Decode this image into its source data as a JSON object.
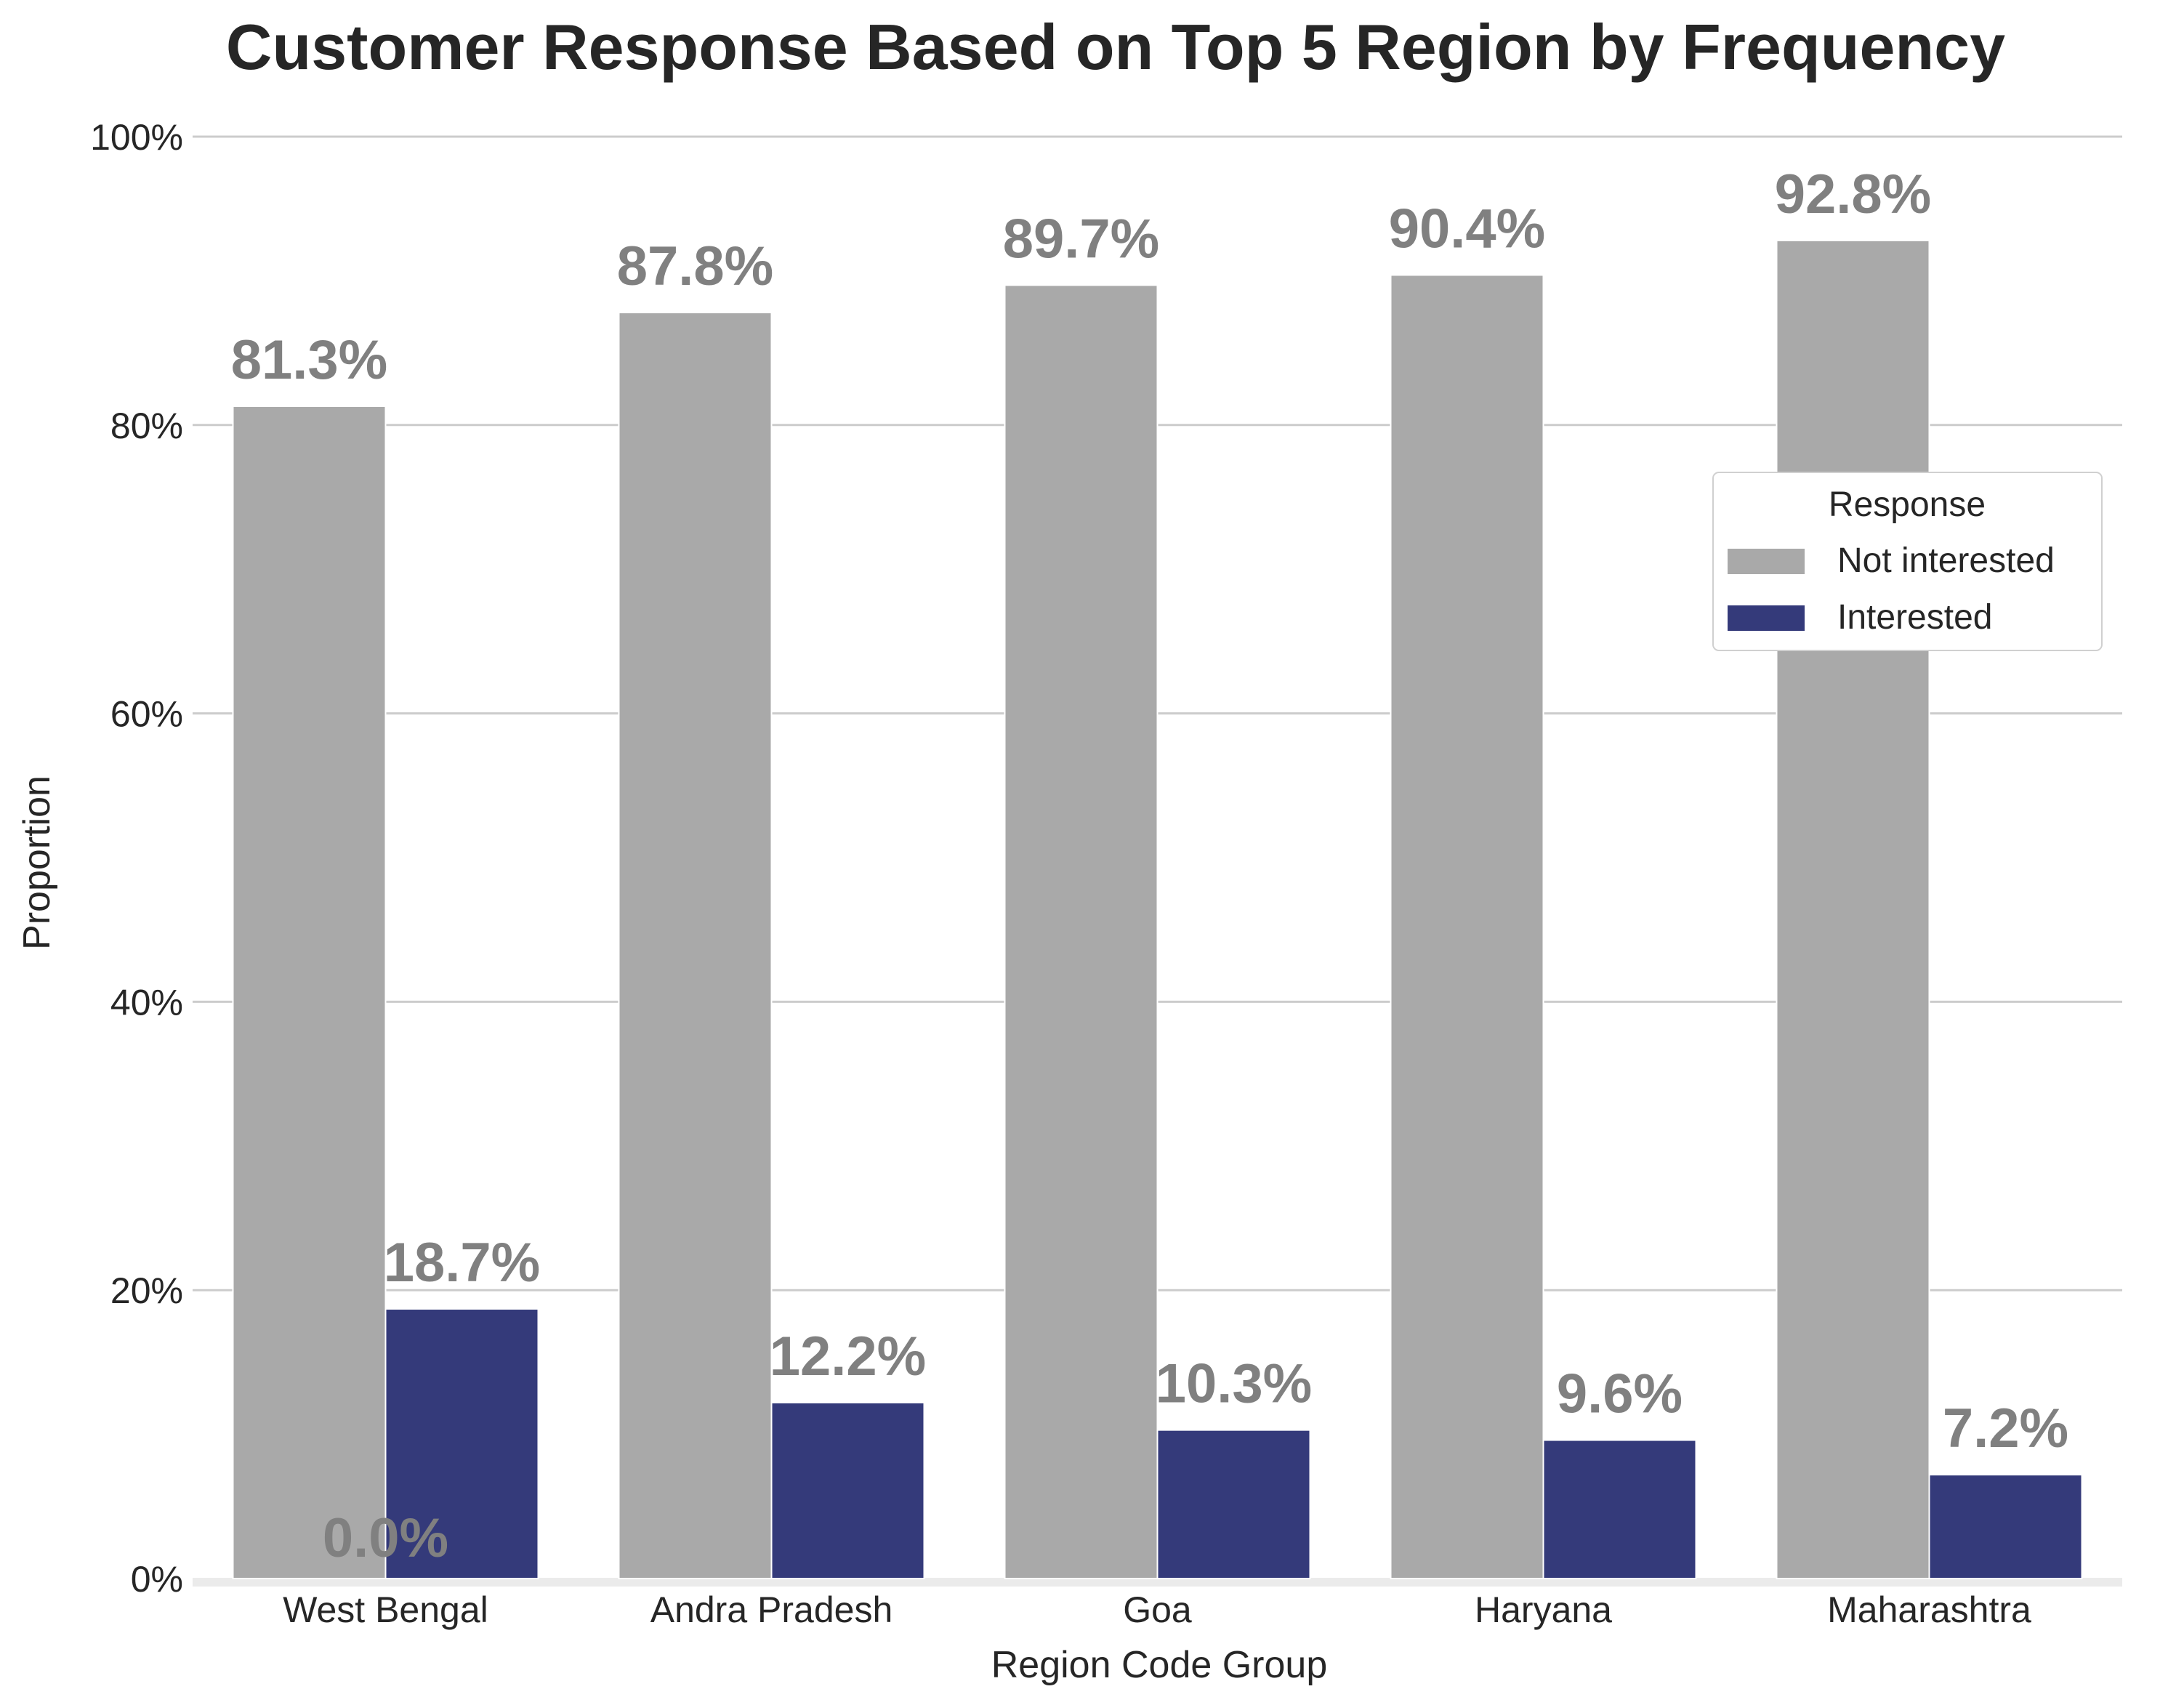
{
  "chart_data": {
    "type": "bar",
    "title": "Customer Response Based on Top 5 Region by Frequency",
    "xlabel": "Region Code Group",
    "ylabel": "Proportion",
    "categories": [
      "West Bengal",
      "Andra Pradesh",
      "Goa",
      "Haryana",
      "Maharashtra"
    ],
    "series": [
      {
        "name": "Not interested",
        "color": "#a9a9a9",
        "values": [
          81.3,
          87.8,
          89.7,
          90.4,
          92.8
        ],
        "labels": [
          "81.3%",
          "87.8%",
          "89.7%",
          "90.4%",
          "92.8%"
        ]
      },
      {
        "name": "Interested",
        "color": "#343a7a",
        "values": [
          18.7,
          12.2,
          10.3,
          9.6,
          7.2
        ],
        "labels": [
          "18.7%",
          "12.2%",
          "10.3%",
          "9.6%",
          "7.2%"
        ]
      }
    ],
    "extra_annotations": [
      {
        "category": "West Bengal",
        "text": "0.0%"
      }
    ],
    "ylim": [
      0,
      100
    ],
    "yticks": [
      0,
      20,
      40,
      60,
      80,
      100
    ],
    "ytick_labels": [
      "0%",
      "20%",
      "40%",
      "60%",
      "80%",
      "100%"
    ],
    "grid": "horizontal",
    "legend": {
      "title": "Response",
      "position": "right"
    },
    "label_color": "#808080",
    "grid_color": "#cccccc"
  }
}
